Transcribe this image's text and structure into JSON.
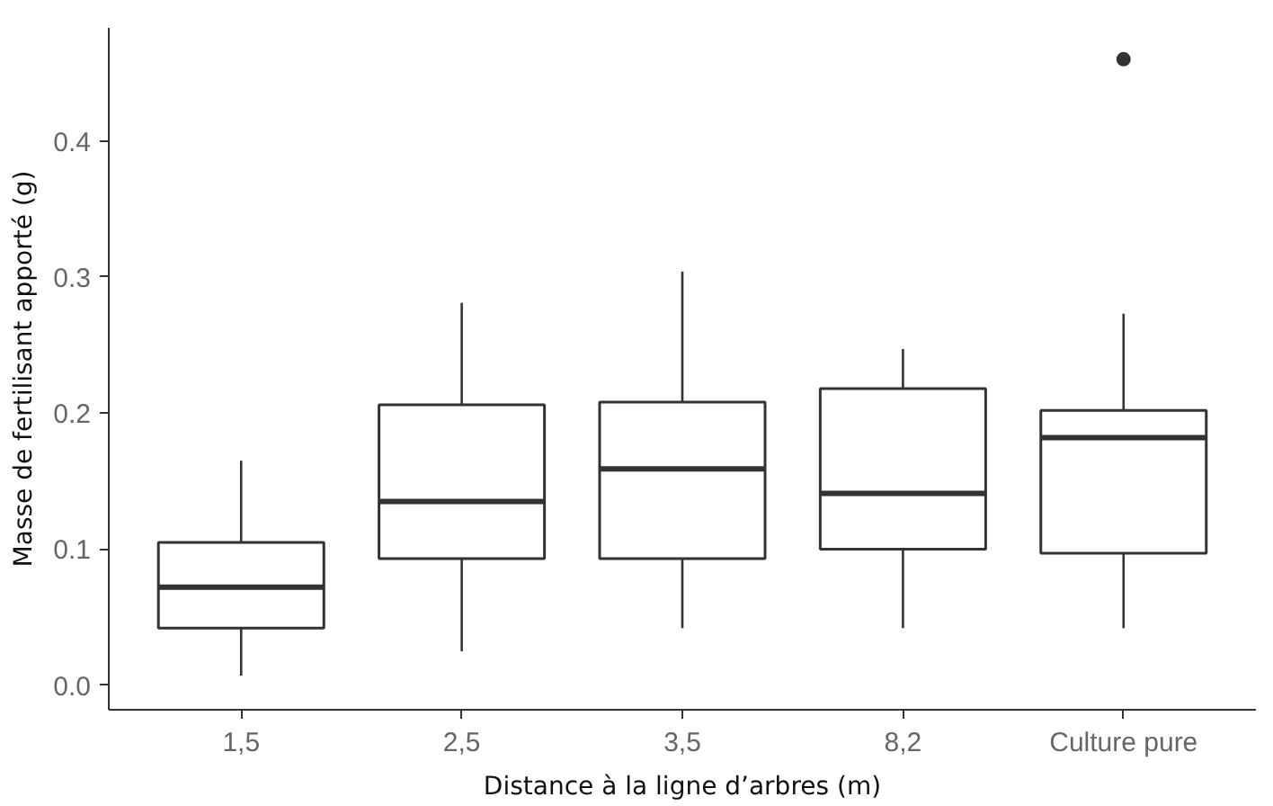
{
  "chart_data": {
    "type": "box",
    "xlabel": "Distance à la ligne d’arbres (m)",
    "ylabel": "Masse de fertilisant apporté (g)",
    "categories": [
      "1,5",
      "2,5",
      "3,5",
      "8,2",
      "Culture pure"
    ],
    "boxes": [
      {
        "low": 0.007,
        "q1": 0.042,
        "median": 0.072,
        "q3": 0.105,
        "high": 0.165
      },
      {
        "low": 0.025,
        "q1": 0.093,
        "median": 0.135,
        "q3": 0.206,
        "high": 0.281
      },
      {
        "low": 0.042,
        "q1": 0.093,
        "median": 0.159,
        "q3": 0.208,
        "high": 0.304
      },
      {
        "low": 0.042,
        "q1": 0.1,
        "median": 0.141,
        "q3": 0.218,
        "high": 0.247
      },
      {
        "low": 0.042,
        "q1": 0.097,
        "median": 0.182,
        "q3": 0.202,
        "high": 0.273,
        "outliers": [
          0.46
        ]
      }
    ],
    "ylim": [
      -0.018,
      0.483
    ],
    "yticks": [
      {
        "value": 0,
        "label": "0.0"
      },
      0.1,
      0.2,
      0.3,
      0.4
    ],
    "grid": false
  }
}
